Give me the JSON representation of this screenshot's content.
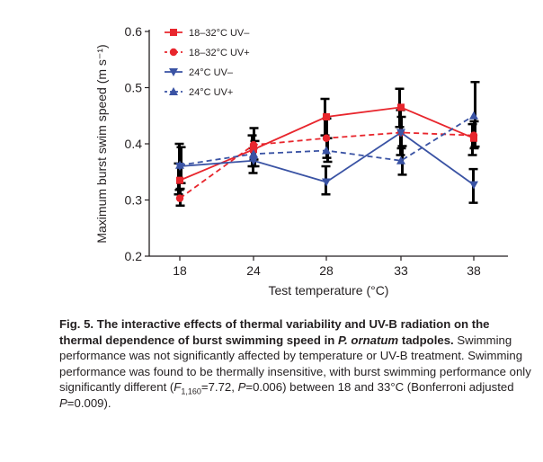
{
  "chart_data": {
    "type": "line",
    "title": "",
    "xlabel": "Test temperature (°C)",
    "ylabel": "Maximum burst swim speed (m s⁻¹)",
    "x": [
      18,
      24,
      28,
      33,
      38
    ],
    "x_tick_labels": [
      "18",
      "24",
      "28",
      "33",
      "38"
    ],
    "ylim": [
      0.2,
      0.6
    ],
    "y_ticks": [
      0.2,
      0.3,
      0.4,
      0.5,
      0.6
    ],
    "y_tick_labels": [
      "0.2",
      "0.3",
      "0.4",
      "0.5",
      "0.6"
    ],
    "grid": false,
    "legend_position": "top-left",
    "series": [
      {
        "name": "18–32°C UV–",
        "color": "#e8262d",
        "line_style": "solid",
        "marker": "square",
        "values": [
          0.335,
          0.39,
          0.448,
          0.465,
          0.41
        ],
        "error_bars": [
          [
            0.31,
            0.365
          ],
          [
            0.36,
            0.415
          ],
          [
            0.415,
            0.48
          ],
          [
            0.43,
            0.498
          ],
          [
            0.38,
            0.435
          ]
        ]
      },
      {
        "name": "18–32°C UV+",
        "color": "#e8262d",
        "line_style": "dashed",
        "marker": "circle",
        "values": [
          0.303,
          0.398,
          0.41,
          0.42,
          0.415
        ],
        "error_bars": [
          [
            0.29,
            0.32
          ],
          [
            0.372,
            0.428
          ],
          [
            0.375,
            0.445
          ],
          [
            0.392,
            0.448
          ],
          [
            0.392,
            0.44
          ]
        ]
      },
      {
        "name": "24°C UV–",
        "color": "#3a53a4",
        "line_style": "solid",
        "marker": "triangle-down",
        "values": [
          0.36,
          0.37,
          0.332,
          0.42,
          0.327
        ],
        "error_bars": [
          [
            0.318,
            0.4
          ],
          [
            0.348,
            0.392
          ],
          [
            0.31,
            0.36
          ],
          [
            0.38,
            0.46
          ],
          [
            0.295,
            0.355
          ]
        ]
      },
      {
        "name": "24°C UV+",
        "color": "#3a53a4",
        "line_style": "dashed",
        "marker": "triangle-up",
        "values": [
          0.362,
          0.382,
          0.388,
          0.37,
          0.45
        ],
        "error_bars": [
          [
            0.33,
            0.394
          ],
          [
            0.36,
            0.405
          ],
          [
            0.368,
            0.41
          ],
          [
            0.345,
            0.396
          ],
          [
            0.395,
            0.51
          ]
        ]
      }
    ]
  },
  "caption": {
    "title_prefix": "Fig. 5. The interactive effects of thermal variability and UV-B radiation on the thermal dependence of burst swimming speed in ",
    "title_species": "P. ornatum",
    "title_suffix": " tadpoles.",
    "body_1": " Swimming performance was not significantly affected by temperature or UV-B treatment. Swimming performance was found to be thermally insensitive, with burst swimming performance only significantly different (",
    "stat_f": "F",
    "stat_f_sub": "1,160",
    "stat_f_value": "=7.72, ",
    "stat_p1": "P",
    "stat_p1_value": "=0.006) between 18 and 33°C (Bonferroni adjusted ",
    "stat_p2": "P",
    "stat_p2_value": "=0.009)."
  }
}
